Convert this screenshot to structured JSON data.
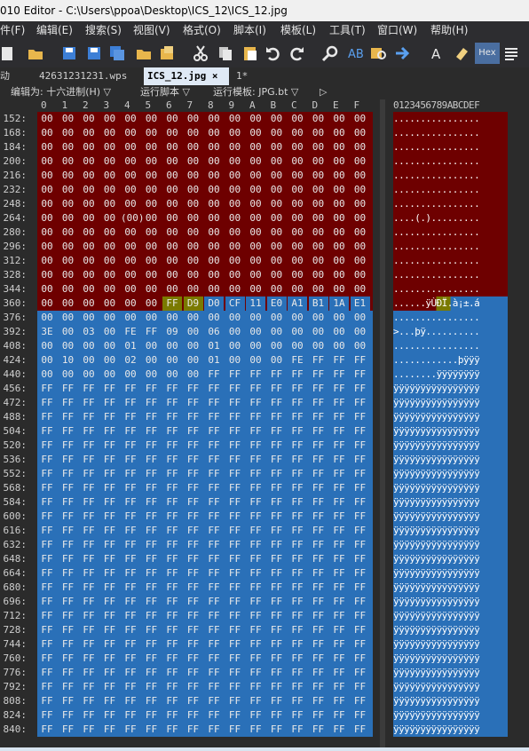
{
  "titlebar": {
    "title": "010 Editor - C:\\Users\\ppoa\\Desktop\\ICS_12\\ICS_12.jpg"
  },
  "menu": [
    "件(F)",
    "编辑(E)",
    "搜索(S)",
    "视图(V)",
    "格式(O)",
    "脚本(I)",
    "模板(L)",
    "工具(T)",
    "窗口(W)",
    "帮助(H)"
  ],
  "toolbar": {
    "hex_label": "Hex"
  },
  "tabs": {
    "left_stub": "动",
    "tab1": "42631231231.wps",
    "tab2": "ICS_12.jpg",
    "tab2_close": "×",
    "tab3": "1*"
  },
  "infobar": {
    "edit_as": "编辑为: 十六进制(H) ▽",
    "run_script": "运行脚本 ▽",
    "run_template": "运行模板: JPG.bt ▽",
    "arrow": "▷"
  },
  "columns": {
    "hex_headers": [
      "0",
      "1",
      "2",
      "3",
      "4",
      "5",
      "6",
      "7",
      "8",
      "9",
      "A",
      "B",
      "C",
      "D",
      "E",
      "F"
    ],
    "ascii_header": "0123456789ABCDEF"
  },
  "rows": [
    {
      "addr": "152:",
      "bytes": [
        "00",
        "00",
        "00",
        "00",
        "00",
        "00",
        "00",
        "00",
        "00",
        "00",
        "00",
        "00",
        "00",
        "00",
        "00",
        "00"
      ],
      "ascii": "................"
    },
    {
      "addr": "168:",
      "bytes": [
        "00",
        "00",
        "00",
        "00",
        "00",
        "00",
        "00",
        "00",
        "00",
        "00",
        "00",
        "00",
        "00",
        "00",
        "00",
        "00"
      ],
      "ascii": "................"
    },
    {
      "addr": "184:",
      "bytes": [
        "00",
        "00",
        "00",
        "00",
        "00",
        "00",
        "00",
        "00",
        "00",
        "00",
        "00",
        "00",
        "00",
        "00",
        "00",
        "00"
      ],
      "ascii": "................"
    },
    {
      "addr": "200:",
      "bytes": [
        "00",
        "00",
        "00",
        "00",
        "00",
        "00",
        "00",
        "00",
        "00",
        "00",
        "00",
        "00",
        "00",
        "00",
        "00",
        "00"
      ],
      "ascii": "................"
    },
    {
      "addr": "216:",
      "bytes": [
        "00",
        "00",
        "00",
        "00",
        "00",
        "00",
        "00",
        "00",
        "00",
        "00",
        "00",
        "00",
        "00",
        "00",
        "00",
        "00"
      ],
      "ascii": "................"
    },
    {
      "addr": "232:",
      "bytes": [
        "00",
        "00",
        "00",
        "00",
        "00",
        "00",
        "00",
        "00",
        "00",
        "00",
        "00",
        "00",
        "00",
        "00",
        "00",
        "00"
      ],
      "ascii": "................"
    },
    {
      "addr": "248:",
      "bytes": [
        "00",
        "00",
        "00",
        "00",
        "00",
        "00",
        "00",
        "00",
        "00",
        "00",
        "00",
        "00",
        "00",
        "00",
        "00",
        "00"
      ],
      "ascii": "................"
    },
    {
      "addr": "264:",
      "bytes": [
        "00",
        "00",
        "00",
        "00",
        "(00)",
        "00",
        "00",
        "00",
        "00",
        "00",
        "00",
        "00",
        "00",
        "00",
        "00",
        "00"
      ],
      "ascii": "....(.)........."
    },
    {
      "addr": "280:",
      "bytes": [
        "00",
        "00",
        "00",
        "00",
        "00",
        "00",
        "00",
        "00",
        "00",
        "00",
        "00",
        "00",
        "00",
        "00",
        "00",
        "00"
      ],
      "ascii": "................"
    },
    {
      "addr": "296:",
      "bytes": [
        "00",
        "00",
        "00",
        "00",
        "00",
        "00",
        "00",
        "00",
        "00",
        "00",
        "00",
        "00",
        "00",
        "00",
        "00",
        "00"
      ],
      "ascii": "................"
    },
    {
      "addr": "312:",
      "bytes": [
        "00",
        "00",
        "00",
        "00",
        "00",
        "00",
        "00",
        "00",
        "00",
        "00",
        "00",
        "00",
        "00",
        "00",
        "00",
        "00"
      ],
      "ascii": "................"
    },
    {
      "addr": "328:",
      "bytes": [
        "00",
        "00",
        "00",
        "00",
        "00",
        "00",
        "00",
        "00",
        "00",
        "00",
        "00",
        "00",
        "00",
        "00",
        "00",
        "00"
      ],
      "ascii": "................"
    },
    {
      "addr": "344:",
      "bytes": [
        "00",
        "00",
        "00",
        "00",
        "00",
        "00",
        "00",
        "00",
        "00",
        "00",
        "00",
        "00",
        "00",
        "00",
        "00",
        "00"
      ],
      "ascii": "................"
    },
    {
      "addr": "360:",
      "bytes": [
        "00",
        "00",
        "00",
        "00",
        "00",
        "00",
        "FF",
        "D9",
        "D0",
        "CF",
        "11",
        "E0",
        "A1",
        "B1",
        "1A",
        "E1"
      ],
      "ascii": "......ÿÙÐÏ.à¡±.á"
    },
    {
      "addr": "376:",
      "bytes": [
        "00",
        "00",
        "00",
        "00",
        "00",
        "00",
        "00",
        "00",
        "00",
        "00",
        "00",
        "00",
        "00",
        "00",
        "00",
        "00"
      ],
      "ascii": "................"
    },
    {
      "addr": "392:",
      "bytes": [
        "3E",
        "00",
        "03",
        "00",
        "FE",
        "FF",
        "09",
        "00",
        "06",
        "00",
        "00",
        "00",
        "00",
        "00",
        "00",
        "00"
      ],
      "ascii": ">...þÿ.........."
    },
    {
      "addr": "408:",
      "bytes": [
        "00",
        "00",
        "00",
        "00",
        "01",
        "00",
        "00",
        "00",
        "01",
        "00",
        "00",
        "00",
        "00",
        "00",
        "00",
        "00"
      ],
      "ascii": "................"
    },
    {
      "addr": "424:",
      "bytes": [
        "00",
        "10",
        "00",
        "00",
        "02",
        "00",
        "00",
        "00",
        "01",
        "00",
        "00",
        "00",
        "FE",
        "FF",
        "FF",
        "FF"
      ],
      "ascii": "............þÿÿÿ"
    },
    {
      "addr": "440:",
      "bytes": [
        "00",
        "00",
        "00",
        "00",
        "00",
        "00",
        "00",
        "00",
        "FF",
        "FF",
        "FF",
        "FF",
        "FF",
        "FF",
        "FF",
        "FF"
      ],
      "ascii": "........ÿÿÿÿÿÿÿÿ"
    },
    {
      "addr": "456:",
      "bytes": [
        "FF",
        "FF",
        "FF",
        "FF",
        "FF",
        "FF",
        "FF",
        "FF",
        "FF",
        "FF",
        "FF",
        "FF",
        "FF",
        "FF",
        "FF",
        "FF"
      ],
      "ascii": "ÿÿÿÿÿÿÿÿÿÿÿÿÿÿÿÿ"
    },
    {
      "addr": "472:",
      "bytes": [
        "FF",
        "FF",
        "FF",
        "FF",
        "FF",
        "FF",
        "FF",
        "FF",
        "FF",
        "FF",
        "FF",
        "FF",
        "FF",
        "FF",
        "FF",
        "FF"
      ],
      "ascii": "ÿÿÿÿÿÿÿÿÿÿÿÿÿÿÿÿ"
    },
    {
      "addr": "488:",
      "bytes": [
        "FF",
        "FF",
        "FF",
        "FF",
        "FF",
        "FF",
        "FF",
        "FF",
        "FF",
        "FF",
        "FF",
        "FF",
        "FF",
        "FF",
        "FF",
        "FF"
      ],
      "ascii": "ÿÿÿÿÿÿÿÿÿÿÿÿÿÿÿÿ"
    },
    {
      "addr": "504:",
      "bytes": [
        "FF",
        "FF",
        "FF",
        "FF",
        "FF",
        "FF",
        "FF",
        "FF",
        "FF",
        "FF",
        "FF",
        "FF",
        "FF",
        "FF",
        "FF",
        "FF"
      ],
      "ascii": "ÿÿÿÿÿÿÿÿÿÿÿÿÿÿÿÿ"
    },
    {
      "addr": "520:",
      "bytes": [
        "FF",
        "FF",
        "FF",
        "FF",
        "FF",
        "FF",
        "FF",
        "FF",
        "FF",
        "FF",
        "FF",
        "FF",
        "FF",
        "FF",
        "FF",
        "FF"
      ],
      "ascii": "ÿÿÿÿÿÿÿÿÿÿÿÿÿÿÿÿ"
    },
    {
      "addr": "536:",
      "bytes": [
        "FF",
        "FF",
        "FF",
        "FF",
        "FF",
        "FF",
        "FF",
        "FF",
        "FF",
        "FF",
        "FF",
        "FF",
        "FF",
        "FF",
        "FF",
        "FF"
      ],
      "ascii": "ÿÿÿÿÿÿÿÿÿÿÿÿÿÿÿÿ"
    },
    {
      "addr": "552:",
      "bytes": [
        "FF",
        "FF",
        "FF",
        "FF",
        "FF",
        "FF",
        "FF",
        "FF",
        "FF",
        "FF",
        "FF",
        "FF",
        "FF",
        "FF",
        "FF",
        "FF"
      ],
      "ascii": "ÿÿÿÿÿÿÿÿÿÿÿÿÿÿÿÿ"
    },
    {
      "addr": "568:",
      "bytes": [
        "FF",
        "FF",
        "FF",
        "FF",
        "FF",
        "FF",
        "FF",
        "FF",
        "FF",
        "FF",
        "FF",
        "FF",
        "FF",
        "FF",
        "FF",
        "FF"
      ],
      "ascii": "ÿÿÿÿÿÿÿÿÿÿÿÿÿÿÿÿ"
    },
    {
      "addr": "584:",
      "bytes": [
        "FF",
        "FF",
        "FF",
        "FF",
        "FF",
        "FF",
        "FF",
        "FF",
        "FF",
        "FF",
        "FF",
        "FF",
        "FF",
        "FF",
        "FF",
        "FF"
      ],
      "ascii": "ÿÿÿÿÿÿÿÿÿÿÿÿÿÿÿÿ"
    },
    {
      "addr": "600:",
      "bytes": [
        "FF",
        "FF",
        "FF",
        "FF",
        "FF",
        "FF",
        "FF",
        "FF",
        "FF",
        "FF",
        "FF",
        "FF",
        "FF",
        "FF",
        "FF",
        "FF"
      ],
      "ascii": "ÿÿÿÿÿÿÿÿÿÿÿÿÿÿÿÿ"
    },
    {
      "addr": "616:",
      "bytes": [
        "FF",
        "FF",
        "FF",
        "FF",
        "FF",
        "FF",
        "FF",
        "FF",
        "FF",
        "FF",
        "FF",
        "FF",
        "FF",
        "FF",
        "FF",
        "FF"
      ],
      "ascii": "ÿÿÿÿÿÿÿÿÿÿÿÿÿÿÿÿ"
    },
    {
      "addr": "632:",
      "bytes": [
        "FF",
        "FF",
        "FF",
        "FF",
        "FF",
        "FF",
        "FF",
        "FF",
        "FF",
        "FF",
        "FF",
        "FF",
        "FF",
        "FF",
        "FF",
        "FF"
      ],
      "ascii": "ÿÿÿÿÿÿÿÿÿÿÿÿÿÿÿÿ"
    },
    {
      "addr": "648:",
      "bytes": [
        "FF",
        "FF",
        "FF",
        "FF",
        "FF",
        "FF",
        "FF",
        "FF",
        "FF",
        "FF",
        "FF",
        "FF",
        "FF",
        "FF",
        "FF",
        "FF"
      ],
      "ascii": "ÿÿÿÿÿÿÿÿÿÿÿÿÿÿÿÿ"
    },
    {
      "addr": "664:",
      "bytes": [
        "FF",
        "FF",
        "FF",
        "FF",
        "FF",
        "FF",
        "FF",
        "FF",
        "FF",
        "FF",
        "FF",
        "FF",
        "FF",
        "FF",
        "FF",
        "FF"
      ],
      "ascii": "ÿÿÿÿÿÿÿÿÿÿÿÿÿÿÿÿ"
    },
    {
      "addr": "680:",
      "bytes": [
        "FF",
        "FF",
        "FF",
        "FF",
        "FF",
        "FF",
        "FF",
        "FF",
        "FF",
        "FF",
        "FF",
        "FF",
        "FF",
        "FF",
        "FF",
        "FF"
      ],
      "ascii": "ÿÿÿÿÿÿÿÿÿÿÿÿÿÿÿÿ"
    },
    {
      "addr": "696:",
      "bytes": [
        "FF",
        "FF",
        "FF",
        "FF",
        "FF",
        "FF",
        "FF",
        "FF",
        "FF",
        "FF",
        "FF",
        "FF",
        "FF",
        "FF",
        "FF",
        "FF"
      ],
      "ascii": "ÿÿÿÿÿÿÿÿÿÿÿÿÿÿÿÿ"
    },
    {
      "addr": "712:",
      "bytes": [
        "FF",
        "FF",
        "FF",
        "FF",
        "FF",
        "FF",
        "FF",
        "FF",
        "FF",
        "FF",
        "FF",
        "FF",
        "FF",
        "FF",
        "FF",
        "FF"
      ],
      "ascii": "ÿÿÿÿÿÿÿÿÿÿÿÿÿÿÿÿ"
    },
    {
      "addr": "728:",
      "bytes": [
        "FF",
        "FF",
        "FF",
        "FF",
        "FF",
        "FF",
        "FF",
        "FF",
        "FF",
        "FF",
        "FF",
        "FF",
        "FF",
        "FF",
        "FF",
        "FF"
      ],
      "ascii": "ÿÿÿÿÿÿÿÿÿÿÿÿÿÿÿÿ"
    },
    {
      "addr": "744:",
      "bytes": [
        "FF",
        "FF",
        "FF",
        "FF",
        "FF",
        "FF",
        "FF",
        "FF",
        "FF",
        "FF",
        "FF",
        "FF",
        "FF",
        "FF",
        "FF",
        "FF"
      ],
      "ascii": "ÿÿÿÿÿÿÿÿÿÿÿÿÿÿÿÿ"
    },
    {
      "addr": "760:",
      "bytes": [
        "FF",
        "FF",
        "FF",
        "FF",
        "FF",
        "FF",
        "FF",
        "FF",
        "FF",
        "FF",
        "FF",
        "FF",
        "FF",
        "FF",
        "FF",
        "FF"
      ],
      "ascii": "ÿÿÿÿÿÿÿÿÿÿÿÿÿÿÿÿ"
    },
    {
      "addr": "776:",
      "bytes": [
        "FF",
        "FF",
        "FF",
        "FF",
        "FF",
        "FF",
        "FF",
        "FF",
        "FF",
        "FF",
        "FF",
        "FF",
        "FF",
        "FF",
        "FF",
        "FF"
      ],
      "ascii": "ÿÿÿÿÿÿÿÿÿÿÿÿÿÿÿÿ"
    },
    {
      "addr": "792:",
      "bytes": [
        "FF",
        "FF",
        "FF",
        "FF",
        "FF",
        "FF",
        "FF",
        "FF",
        "FF",
        "FF",
        "FF",
        "FF",
        "FF",
        "FF",
        "FF",
        "FF"
      ],
      "ascii": "ÿÿÿÿÿÿÿÿÿÿÿÿÿÿÿÿ"
    },
    {
      "addr": "808:",
      "bytes": [
        "FF",
        "FF",
        "FF",
        "FF",
        "FF",
        "FF",
        "FF",
        "FF",
        "FF",
        "FF",
        "FF",
        "FF",
        "FF",
        "FF",
        "FF",
        "FF"
      ],
      "ascii": "ÿÿÿÿÿÿÿÿÿÿÿÿÿÿÿÿ"
    },
    {
      "addr": "824:",
      "bytes": [
        "FF",
        "FF",
        "FF",
        "FF",
        "FF",
        "FF",
        "FF",
        "FF",
        "FF",
        "FF",
        "FF",
        "FF",
        "FF",
        "FF",
        "FF",
        "FF"
      ],
      "ascii": "ÿÿÿÿÿÿÿÿÿÿÿÿÿÿÿÿ"
    },
    {
      "addr": "840:",
      "bytes": [
        "FF",
        "FF",
        "FF",
        "FF",
        "FF",
        "FF",
        "FF",
        "FF",
        "FF",
        "FF",
        "FF",
        "FF",
        "FF",
        "FF",
        "FF",
        "FF"
      ],
      "ascii": "ÿÿÿÿÿÿÿÿÿÿÿÿÿÿÿÿ"
    }
  ],
  "colors": {
    "red_region": "#6e0000",
    "blue_region": "#2a70b8",
    "highlight": "#7a7a00"
  }
}
